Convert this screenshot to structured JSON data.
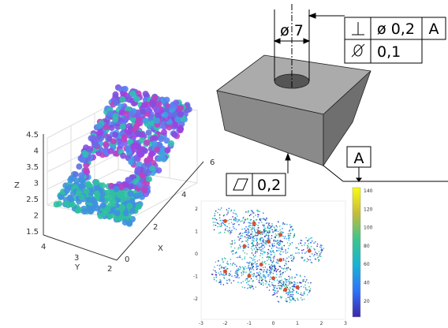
{
  "plot3d": {
    "z_label": "Z",
    "y_label": "Y",
    "x_label": "X",
    "z_ticks": [
      "4.5",
      "4",
      "3.5",
      "3",
      "2.5",
      "2",
      "1.5"
    ],
    "y_ticks": [
      "4",
      "3",
      "2"
    ],
    "x_ticks": [
      "0",
      "2",
      "4",
      "6"
    ]
  },
  "drawing": {
    "diameter": "ø 7",
    "frame1": {
      "tolerance": "ø 0,2",
      "datum": "A"
    },
    "frame2": {
      "tolerance": "0,1"
    },
    "datum_label": "A",
    "frame3": {
      "tolerance": "0,2"
    }
  },
  "scatter": {
    "x_ticks": [
      "-3",
      "-2",
      "-1",
      "0",
      "1",
      "2",
      "3"
    ],
    "y_ticks": [
      "2",
      "1",
      "0",
      "-1",
      "-2"
    ],
    "colorbar_ticks": [
      "140",
      "120",
      "100",
      "80",
      "60",
      "40",
      "20"
    ]
  }
}
